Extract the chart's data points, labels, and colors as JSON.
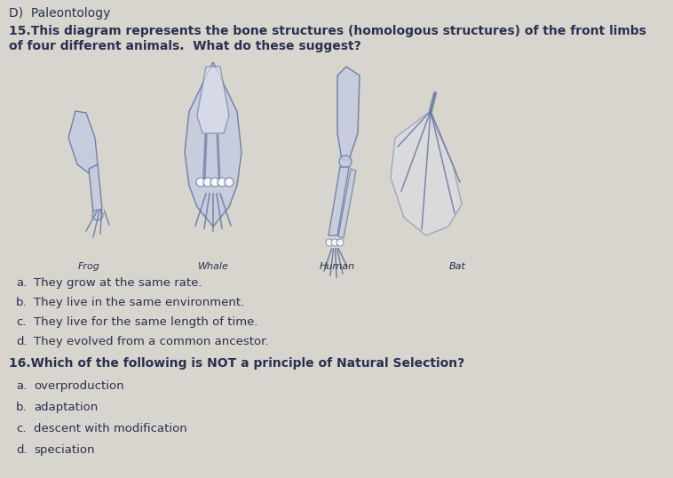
{
  "background_color": "#d8d5ce",
  "section_label": "D)  Paleontology",
  "section_label_fontsize": 10,
  "q15_text_line1": "15.This diagram represents the bone structures (homologous structures) of the front limbs",
  "q15_text_line2": "of four different animals.  What do these suggest?",
  "q15_fontsize": 10,
  "animal_labels": [
    "Frog",
    "Whale",
    "Human",
    "Bat"
  ],
  "animal_label_fontsize": 8,
  "q15_options": [
    [
      "a.",
      "   They grow at the same rate."
    ],
    [
      "b.",
      "   They live in the same environment."
    ],
    [
      "c.",
      "   They live for the same length of time."
    ],
    [
      "d.",
      "   They evolved from a common ancestor."
    ]
  ],
  "q15_options_fontsize": 9.5,
  "q16_text": "16.Which of the following is NOT a principle of Natural Selection?",
  "q16_fontsize": 10,
  "q16_options": [
    [
      "a.",
      "   overproduction"
    ],
    [
      "b.",
      "   adaptation"
    ],
    [
      "c.",
      "   descent with modification"
    ],
    [
      "d.",
      "   speciation"
    ]
  ],
  "q16_options_fontsize": 9.5,
  "text_color": "#2a3050",
  "diagram_color": "#6878a0",
  "diagram_fill": "#c5cce0",
  "diagram_fill_light": "#dde0ec"
}
